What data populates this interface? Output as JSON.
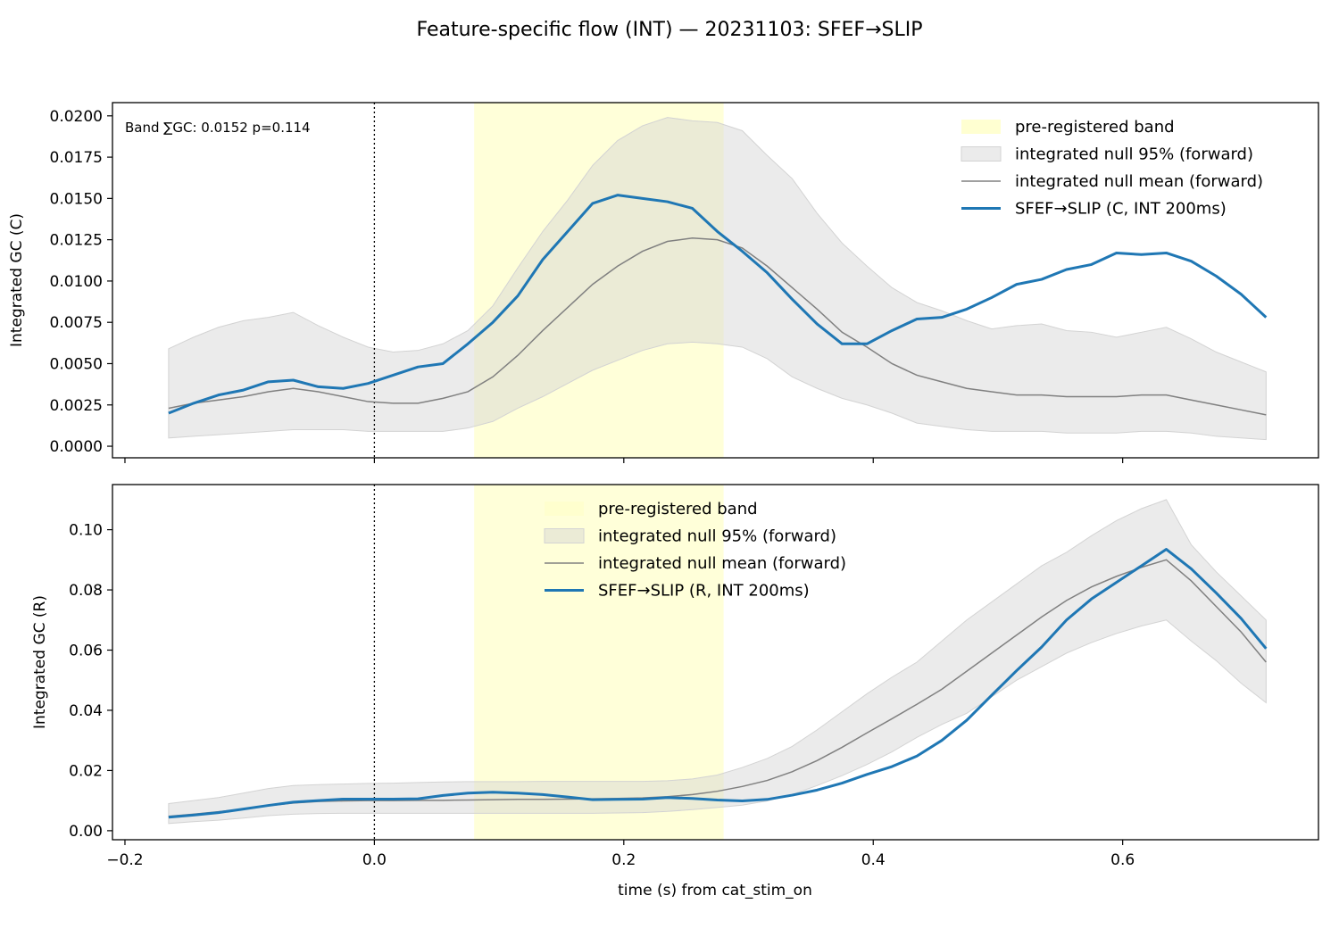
{
  "figure": {
    "title": "Feature-specific flow (INT) — 20231103: SFEF→SLIP",
    "xlabel": "time (s) from cat_stim_on",
    "xticks": [
      -0.2,
      0.0,
      0.2,
      0.4,
      0.6
    ],
    "xtick_labels": [
      "−0.2",
      "0.0",
      "0.2",
      "0.4",
      "0.6"
    ],
    "xlim": [
      -0.21,
      0.757
    ]
  },
  "colors": {
    "series": "#1f77b4",
    "null_mean": "#808080",
    "null_band": "#d3d3d3",
    "pre_registered_band": "#ffffcc",
    "stim_line": "#000000"
  },
  "chart_data": [
    {
      "type": "line",
      "id": "top",
      "ylabel": "Integrated GC (C)",
      "ylim": [
        -0.0007,
        0.0208
      ],
      "yticks": [
        0.0,
        0.0025,
        0.005,
        0.0075,
        0.01,
        0.0125,
        0.015,
        0.0175,
        0.02
      ],
      "ytick_labels": [
        "0.0000",
        "0.0025",
        "0.0050",
        "0.0075",
        "0.0100",
        "0.0125",
        "0.0150",
        "0.0175",
        "0.0200"
      ],
      "annotation": "Band ∑GC: 0.0152  p=0.114",
      "band": [
        0.08,
        0.28
      ],
      "stim_onset": 0.0,
      "legend_position": "upper right",
      "legend": [
        "pre-registered band",
        "integrated null 95% (forward)",
        "integrated null mean (forward)",
        "SFEF→SLIP (C, INT 200ms)"
      ],
      "x": [
        -0.165,
        -0.145,
        -0.125,
        -0.105,
        -0.085,
        -0.065,
        -0.045,
        -0.025,
        -0.005,
        0.015,
        0.035,
        0.055,
        0.075,
        0.095,
        0.115,
        0.135,
        0.155,
        0.175,
        0.195,
        0.215,
        0.235,
        0.255,
        0.275,
        0.295,
        0.315,
        0.335,
        0.355,
        0.375,
        0.395,
        0.415,
        0.435,
        0.455,
        0.475,
        0.495,
        0.515,
        0.535,
        0.555,
        0.575,
        0.595,
        0.615,
        0.635,
        0.655,
        0.675,
        0.695,
        0.715
      ],
      "series": [
        {
          "name": "SFEF→SLIP (C, INT 200ms)",
          "values": [
            0.002,
            0.0026,
            0.0031,
            0.0034,
            0.0039,
            0.004,
            0.0036,
            0.0035,
            0.0038,
            0.0043,
            0.0048,
            0.005,
            0.0062,
            0.0075,
            0.0091,
            0.0113,
            0.013,
            0.0147,
            0.0152,
            0.015,
            0.0148,
            0.0144,
            0.013,
            0.0118,
            0.0105,
            0.0089,
            0.0074,
            0.0062,
            0.0062,
            0.007,
            0.0077,
            0.0078,
            0.0083,
            0.009,
            0.0098,
            0.0101,
            0.0107,
            0.011,
            0.0117,
            0.0116,
            0.0117,
            0.0112,
            0.0103,
            0.0092,
            0.0078
          ]
        },
        {
          "name": "integrated null mean (forward)",
          "values": [
            0.0023,
            0.0026,
            0.0028,
            0.003,
            0.0033,
            0.0035,
            0.0033,
            0.003,
            0.0027,
            0.0026,
            0.0026,
            0.0029,
            0.0033,
            0.0042,
            0.0055,
            0.007,
            0.0084,
            0.0098,
            0.0109,
            0.0118,
            0.0124,
            0.0126,
            0.0125,
            0.012,
            0.0109,
            0.0096,
            0.0083,
            0.0069,
            0.006,
            0.005,
            0.0043,
            0.0039,
            0.0035,
            0.0033,
            0.0031,
            0.0031,
            0.003,
            0.003,
            0.003,
            0.0031,
            0.0031,
            0.0028,
            0.0025,
            0.0022,
            0.0019
          ]
        }
      ],
      "null_band": {
        "name": "integrated null 95% (forward)",
        "lower": [
          0.0005,
          0.0006,
          0.0007,
          0.0008,
          0.0009,
          0.001,
          0.001,
          0.001,
          0.0009,
          0.0009,
          0.0009,
          0.0009,
          0.0011,
          0.0015,
          0.0023,
          0.003,
          0.0038,
          0.0046,
          0.0052,
          0.0058,
          0.0062,
          0.0063,
          0.0062,
          0.006,
          0.0053,
          0.0042,
          0.0035,
          0.0029,
          0.0025,
          0.002,
          0.0014,
          0.0012,
          0.001,
          0.0009,
          0.0009,
          0.0009,
          0.0008,
          0.0008,
          0.0008,
          0.0009,
          0.0009,
          0.0008,
          0.0006,
          0.0005,
          0.0004
        ],
        "upper": [
          0.0059,
          0.0066,
          0.0072,
          0.0076,
          0.0078,
          0.0081,
          0.0073,
          0.0066,
          0.006,
          0.0057,
          0.0058,
          0.0062,
          0.007,
          0.0085,
          0.0108,
          0.013,
          0.0149,
          0.017,
          0.0185,
          0.0194,
          0.0199,
          0.0197,
          0.0196,
          0.0191,
          0.0176,
          0.0162,
          0.0141,
          0.0123,
          0.0109,
          0.0096,
          0.0087,
          0.0082,
          0.0076,
          0.0071,
          0.0073,
          0.0074,
          0.007,
          0.0069,
          0.0066,
          0.0069,
          0.0072,
          0.0065,
          0.0057,
          0.0051,
          0.0045
        ]
      }
    },
    {
      "type": "line",
      "id": "bottom",
      "ylabel": "Integrated GC (R)",
      "ylim": [
        -0.003,
        0.115
      ],
      "yticks": [
        0.0,
        0.02,
        0.04,
        0.06,
        0.08,
        0.1
      ],
      "ytick_labels": [
        "0.00",
        "0.02",
        "0.04",
        "0.06",
        "0.08",
        "0.10"
      ],
      "band": [
        0.08,
        0.28
      ],
      "stim_onset": 0.0,
      "legend_position": "upper center",
      "legend": [
        "pre-registered band",
        "integrated null 95% (forward)",
        "integrated null mean (forward)",
        "SFEF→SLIP (R, INT 200ms)"
      ],
      "x": [
        -0.165,
        -0.145,
        -0.125,
        -0.105,
        -0.085,
        -0.065,
        -0.045,
        -0.025,
        -0.005,
        0.015,
        0.035,
        0.055,
        0.075,
        0.095,
        0.115,
        0.135,
        0.155,
        0.175,
        0.195,
        0.215,
        0.235,
        0.255,
        0.275,
        0.295,
        0.315,
        0.335,
        0.355,
        0.375,
        0.395,
        0.415,
        0.435,
        0.455,
        0.475,
        0.495,
        0.515,
        0.535,
        0.555,
        0.575,
        0.595,
        0.615,
        0.635,
        0.655,
        0.675,
        0.695,
        0.715
      ],
      "series": [
        {
          "name": "SFEF→SLIP (R, INT 200ms)",
          "values": [
            0.0045,
            0.0052,
            0.006,
            0.0072,
            0.0084,
            0.0095,
            0.01,
            0.0105,
            0.0105,
            0.0105,
            0.0106,
            0.0117,
            0.0125,
            0.0128,
            0.0125,
            0.012,
            0.0112,
            0.0103,
            0.0104,
            0.0105,
            0.011,
            0.0107,
            0.0102,
            0.0099,
            0.0104,
            0.0118,
            0.0135,
            0.0158,
            0.0187,
            0.0213,
            0.0248,
            0.03,
            0.0367,
            0.045,
            0.0532,
            0.061,
            0.07,
            0.077,
            0.0825,
            0.088,
            0.0935,
            0.087,
            0.079,
            0.0705,
            0.0605
          ]
        },
        {
          "name": "integrated null mean (forward)",
          "values": [
            0.0048,
            0.0055,
            0.0063,
            0.0072,
            0.0083,
            0.0092,
            0.0097,
            0.0099,
            0.01,
            0.01,
            0.0101,
            0.0101,
            0.0102,
            0.0103,
            0.0104,
            0.0104,
            0.0105,
            0.0106,
            0.0107,
            0.0109,
            0.0113,
            0.012,
            0.0131,
            0.0147,
            0.0167,
            0.0196,
            0.0233,
            0.0277,
            0.0325,
            0.0372,
            0.042,
            0.047,
            0.053,
            0.059,
            0.065,
            0.071,
            0.0765,
            0.081,
            0.0845,
            0.0875,
            0.09,
            0.083,
            0.0745,
            0.066,
            0.056
          ]
        }
      ],
      "null_band": {
        "name": "integrated null 95% (forward)",
        "lower": [
          0.0024,
          0.003,
          0.0035,
          0.0042,
          0.005,
          0.0055,
          0.0057,
          0.0058,
          0.0058,
          0.0058,
          0.0058,
          0.0058,
          0.0058,
          0.0058,
          0.0058,
          0.0058,
          0.0058,
          0.0058,
          0.0059,
          0.006,
          0.0064,
          0.007,
          0.0077,
          0.0085,
          0.0099,
          0.012,
          0.015,
          0.0183,
          0.022,
          0.0262,
          0.031,
          0.0353,
          0.039,
          0.0445,
          0.05,
          0.0545,
          0.059,
          0.0625,
          0.0655,
          0.068,
          0.07,
          0.063,
          0.0565,
          0.049,
          0.0425
        ],
        "upper": [
          0.009,
          0.01,
          0.011,
          0.0125,
          0.014,
          0.015,
          0.0153,
          0.0155,
          0.0157,
          0.0158,
          0.016,
          0.0162,
          0.0163,
          0.0163,
          0.0163,
          0.0164,
          0.0164,
          0.0164,
          0.0164,
          0.0164,
          0.0166,
          0.0172,
          0.0185,
          0.021,
          0.024,
          0.028,
          0.0335,
          0.0395,
          0.0455,
          0.051,
          0.056,
          0.063,
          0.07,
          0.076,
          0.082,
          0.088,
          0.0925,
          0.098,
          0.103,
          0.107,
          0.11,
          0.095,
          0.086,
          0.078,
          0.07
        ]
      }
    }
  ]
}
